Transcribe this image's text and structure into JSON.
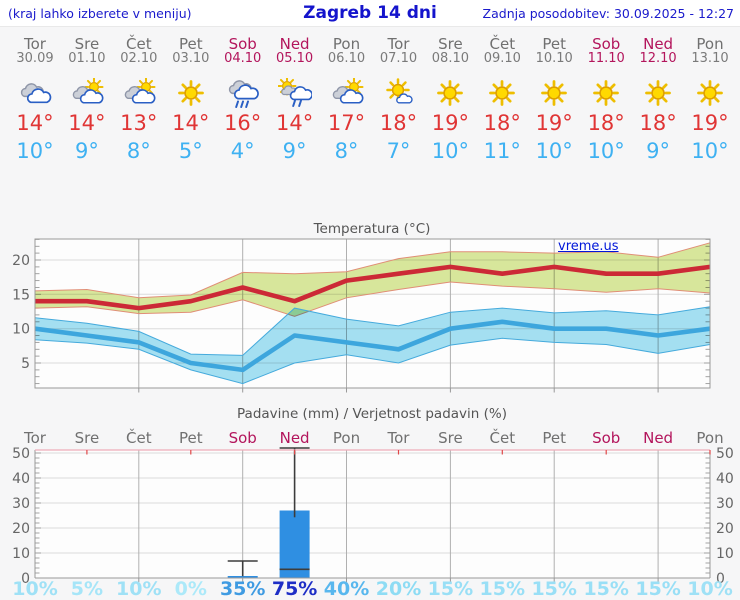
{
  "header": {
    "hint": "(kraj lahko izberete v meniju)",
    "title": "Zagreb 14 dni",
    "updated": "Zadnja posodobitev: 30.09.2025 - 12:27"
  },
  "colors": {
    "header_text": "#1414cc",
    "weekday": "#707070",
    "weekend": "#b3155c",
    "max_temp": "#e03535",
    "min_temp": "#3eb1f2",
    "bar": "#2f8fe2",
    "whisker": "#3c3c3c",
    "max_line": "#cc2936",
    "min_line": "#3da6dd",
    "max_band": "#d9e89c",
    "max_band_edge": "#e08e76",
    "min_band": "#a5e1f3",
    "min_band_edge": "#45aadc",
    "precip_top_border": "#eeacb8",
    "precip_top_tick": "#e04848"
  },
  "days": [
    {
      "weekday": "Tor",
      "date": "30.09",
      "weekend": false,
      "icon": "cloudy",
      "tmax": "14°",
      "tmin": "10°"
    },
    {
      "weekday": "Sre",
      "date": "01.10",
      "weekend": false,
      "icon": "partly-cloudy",
      "tmax": "14°",
      "tmin": "9°"
    },
    {
      "weekday": "Čet",
      "date": "02.10",
      "weekend": false,
      "icon": "partly-cloudy",
      "tmax": "13°",
      "tmin": "8°"
    },
    {
      "weekday": "Pet",
      "date": "03.10",
      "weekend": false,
      "icon": "sunny",
      "tmax": "14°",
      "tmin": "5°"
    },
    {
      "weekday": "Sob",
      "date": "04.10",
      "weekend": true,
      "icon": "rain",
      "tmax": "16°",
      "tmin": "4°"
    },
    {
      "weekday": "Ned",
      "date": "05.10",
      "weekend": true,
      "icon": "sun-rain",
      "tmax": "14°",
      "tmin": "9°"
    },
    {
      "weekday": "Pon",
      "date": "06.10",
      "weekend": false,
      "icon": "partly-cloudy",
      "tmax": "17°",
      "tmin": "8°"
    },
    {
      "weekday": "Tor",
      "date": "07.10",
      "weekend": false,
      "icon": "mostly-sunny",
      "tmax": "18°",
      "tmin": "7°"
    },
    {
      "weekday": "Sre",
      "date": "08.10",
      "weekend": false,
      "icon": "sunny",
      "tmax": "19°",
      "tmin": "10°"
    },
    {
      "weekday": "Čet",
      "date": "09.10",
      "weekend": false,
      "icon": "sunny",
      "tmax": "18°",
      "tmin": "11°"
    },
    {
      "weekday": "Pet",
      "date": "10.10",
      "weekend": false,
      "icon": "sunny",
      "tmax": "19°",
      "tmin": "10°"
    },
    {
      "weekday": "Sob",
      "date": "11.10",
      "weekend": true,
      "icon": "sunny",
      "tmax": "18°",
      "tmin": "10°"
    },
    {
      "weekday": "Ned",
      "date": "12.10",
      "weekend": true,
      "icon": "sunny",
      "tmax": "18°",
      "tmin": "9°"
    },
    {
      "weekday": "Pon",
      "date": "13.10",
      "weekend": false,
      "icon": "sunny",
      "tmax": "19°",
      "tmin": "10°"
    }
  ],
  "chart_data": [
    {
      "type": "line",
      "title": "Temperatura (°C)",
      "watermark": "vreme.us",
      "categories": [
        "Tor",
        "Sre",
        "Čet",
        "Pet",
        "Sob",
        "Ned",
        "Pon",
        "Tor",
        "Sre",
        "Čet",
        "Pet",
        "Sob",
        "Ned",
        "Pon"
      ],
      "ylim": [
        1.4,
        23.1
      ],
      "yticks": [
        5,
        10,
        15,
        20
      ],
      "grid": true,
      "series": [
        {
          "name": "max_temp",
          "color": "#cc2936",
          "values": [
            14,
            14,
            13,
            14,
            16,
            14,
            17,
            18,
            19,
            18,
            19,
            18,
            18,
            19
          ]
        },
        {
          "name": "max_temp_range_high",
          "color": "#d9e89c",
          "values": [
            15.5,
            15.7,
            14.5,
            14.9,
            18.2,
            18.0,
            18.3,
            20.2,
            21.2,
            21.2,
            21.0,
            21.2,
            20.4,
            22.5
          ]
        },
        {
          "name": "max_temp_range_low",
          "color": "#d9e89c",
          "values": [
            13.0,
            13.2,
            12.2,
            12.4,
            14.2,
            11.8,
            14.5,
            15.7,
            16.8,
            16.2,
            15.8,
            15.3,
            15.8,
            15.2
          ]
        },
        {
          "name": "min_temp",
          "color": "#3da6dd",
          "values": [
            10,
            9,
            8,
            5,
            4,
            9,
            8,
            7,
            10,
            11,
            10,
            10,
            9,
            10
          ]
        },
        {
          "name": "min_temp_range_high",
          "color": "#a5e1f3",
          "values": [
            11.6,
            10.8,
            9.6,
            6.3,
            6.1,
            13.0,
            11.4,
            10.4,
            12.4,
            13.0,
            12.3,
            12.6,
            12.0,
            13.2
          ]
        },
        {
          "name": "min_temp_range_low",
          "color": "#a5e1f3",
          "values": [
            8.4,
            7.9,
            7.0,
            4.0,
            2.0,
            5.0,
            6.2,
            5.0,
            7.6,
            8.6,
            8.0,
            7.7,
            6.4,
            7.7
          ]
        }
      ]
    },
    {
      "type": "bar",
      "title": "Padavine (mm) / Verjetnost padavin (%)",
      "categories": [
        "Tor",
        "Sre",
        "Čet",
        "Pet",
        "Sob",
        "Ned",
        "Pon",
        "Tor",
        "Sre",
        "Čet",
        "Pet",
        "Sob",
        "Ned",
        "Pon"
      ],
      "ylim": [
        0,
        51.2
      ],
      "yticks": [
        0,
        10,
        20,
        30,
        40,
        50
      ],
      "bar_color": "#2f8fe2",
      "bars": [
        {
          "day_index": 4,
          "mm": 0.8,
          "range_low": 0,
          "range_high": 6.8
        },
        {
          "day_index": 5,
          "mm": 27,
          "range_low": 3.5,
          "range_high": 52
        }
      ],
      "probabilities": [
        "10%",
        "5%",
        "10%",
        "0%",
        "35%",
        "75%",
        "40%",
        "20%",
        "15%",
        "15%",
        "15%",
        "15%",
        "15%",
        "10%"
      ],
      "probability_colors": [
        "#9fe1f6",
        "#a6e5f8",
        "#9fe1f6",
        "#ace9f9",
        "#3f9be2",
        "#1e2ec6",
        "#58b7ee",
        "#8edcf4",
        "#99dff6",
        "#99dff6",
        "#99dff6",
        "#99dff6",
        "#99dff6",
        "#9fe1f6"
      ]
    }
  ]
}
